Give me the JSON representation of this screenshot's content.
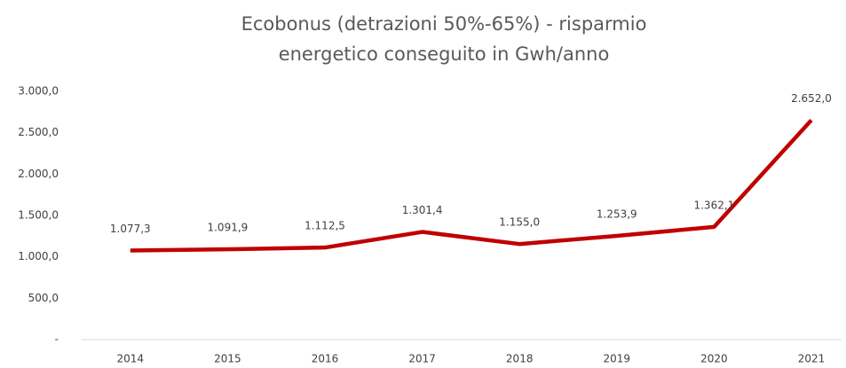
{
  "chart_data": {
    "type": "line",
    "title": "Ecobonus (detrazioni 50%-65%) - risparmio energetico conseguito in Gwh/anno",
    "categories": [
      "2014",
      "2015",
      "2016",
      "2017",
      "2018",
      "2019",
      "2020",
      "2021"
    ],
    "series": [
      {
        "color": "#c00000",
        "values": [
          1077.3,
          1091.9,
          1112.5,
          1301.4,
          1155.0,
          1253.9,
          1362.1,
          2652.0
        ],
        "value_labels": [
          "1.077,3",
          "1.091,9",
          "1.112,5",
          "1.301,4",
          "1.155,0",
          "1.253,9",
          "1.362,1",
          "2.652,0"
        ]
      }
    ],
    "ylim": [
      0,
      3000
    ],
    "yticks": [
      {
        "value": 0,
        "label": "-"
      },
      {
        "value": 500,
        "label": "500,0"
      },
      {
        "value": 1000,
        "label": "1.000,0"
      },
      {
        "value": 1500,
        "label": "1.500,0"
      },
      {
        "value": 2000,
        "label": "2.000,0"
      },
      {
        "value": 2500,
        "label": "2.500,0"
      },
      {
        "value": 3000,
        "label": "3.000,0"
      }
    ]
  }
}
